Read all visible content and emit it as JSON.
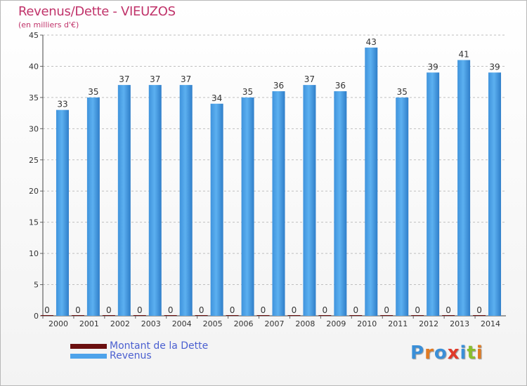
{
  "header": {
    "title": "Revenus/Dette - VIEUZOS",
    "subtitle": "(en milliers d'€)"
  },
  "legend": {
    "items": [
      {
        "label": "Montant de la Dette",
        "color": "#6b0f0f"
      },
      {
        "label": "Revenus",
        "color": "#4ea3ea"
      }
    ]
  },
  "logo": {
    "text": "Proxiti",
    "letters": [
      {
        "ch": "P",
        "color": "#3a8fd8"
      },
      {
        "ch": "r",
        "color": "#e07a22"
      },
      {
        "ch": "o",
        "color": "#3a8fd8"
      },
      {
        "ch": "x",
        "color": "#e03a2a"
      },
      {
        "ch": "i",
        "color": "#3a8fd8"
      },
      {
        "ch": "t",
        "color": "#8abf2c"
      },
      {
        "ch": "i",
        "color": "#e07a22"
      }
    ]
  },
  "chart_data": {
    "type": "bar",
    "categories": [
      "2000",
      "2001",
      "2002",
      "2003",
      "2004",
      "2005",
      "2006",
      "2007",
      "2008",
      "2009",
      "2010",
      "2011",
      "2012",
      "2013",
      "2014"
    ],
    "series": [
      {
        "name": "Montant de la Dette",
        "values": [
          0,
          0,
          0,
          0,
          0,
          0,
          0,
          0,
          0,
          0,
          0,
          0,
          0,
          0,
          0
        ],
        "color": "#6b0f0f"
      },
      {
        "name": "Revenus",
        "values": [
          33,
          35,
          37,
          37,
          37,
          34,
          35,
          36,
          37,
          36,
          43,
          35,
          39,
          41,
          39
        ],
        "color": "#4ea3ea"
      }
    ],
    "title": "Revenus/Dette - VIEUZOS",
    "ylabel": "(en milliers d'€)",
    "ylim": [
      0,
      45
    ],
    "yticks": [
      0,
      5,
      10,
      15,
      20,
      25,
      30,
      35,
      40,
      45
    ],
    "grid": true,
    "legend_position": "bottom-left"
  }
}
